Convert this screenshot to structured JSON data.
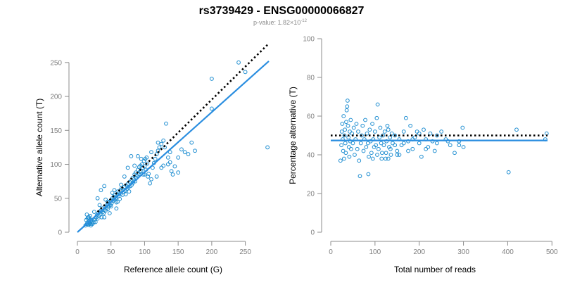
{
  "header": {
    "title": "rs3739429 - ENSG00000066827",
    "pvalue_prefix": "p-value: 1.82×10",
    "pvalue_exponent": "-12"
  },
  "colors": {
    "point": "#1f8ed1",
    "fit": "#2a8ee0",
    "expected": "#000000",
    "axis": "#8c8c8c"
  },
  "chart_data": [
    {
      "type": "scatter",
      "name": "left-panel",
      "xlabel": "Reference allele count (G)",
      "ylabel": "Alternative allele count (T)",
      "xlim": [
        0,
        285
      ],
      "ylim": [
        0,
        255
      ],
      "xticks": [
        0,
        50,
        100,
        150,
        200,
        250
      ],
      "yticks": [
        0,
        50,
        100,
        150,
        200,
        250
      ],
      "fit_line": {
        "style": "solid",
        "x": [
          0,
          285
        ],
        "y": [
          0,
          252
        ]
      },
      "expected_line": {
        "style": "dotted",
        "x": [
          30,
          285
        ],
        "y": [
          30,
          278
        ]
      },
      "points": [
        [
          12,
          10
        ],
        [
          14,
          12
        ],
        [
          15,
          14
        ],
        [
          16,
          11
        ],
        [
          17,
          15
        ],
        [
          18,
          17
        ],
        [
          19,
          13
        ],
        [
          20,
          16
        ],
        [
          21,
          18
        ],
        [
          22,
          15
        ],
        [
          13,
          18
        ],
        [
          15,
          20
        ],
        [
          17,
          22
        ],
        [
          19,
          24
        ],
        [
          14,
          26
        ],
        [
          16,
          22
        ],
        [
          18,
          12
        ],
        [
          20,
          10
        ],
        [
          22,
          12
        ],
        [
          24,
          14
        ],
        [
          25,
          18
        ],
        [
          26,
          20
        ],
        [
          27,
          15
        ],
        [
          28,
          22
        ],
        [
          29,
          25
        ],
        [
          30,
          20
        ],
        [
          31,
          28
        ],
        [
          32,
          24
        ],
        [
          33,
          30
        ],
        [
          34,
          26
        ],
        [
          35,
          32
        ],
        [
          36,
          22
        ],
        [
          37,
          35
        ],
        [
          38,
          30
        ],
        [
          39,
          28
        ],
        [
          40,
          33
        ],
        [
          41,
          38
        ],
        [
          42,
          32
        ],
        [
          43,
          36
        ],
        [
          44,
          40
        ],
        [
          45,
          34
        ],
        [
          46,
          42
        ],
        [
          47,
          38
        ],
        [
          48,
          45
        ],
        [
          49,
          40
        ],
        [
          50,
          47
        ],
        [
          51,
          43
        ],
        [
          52,
          50
        ],
        [
          53,
          46
        ],
        [
          54,
          52
        ],
        [
          55,
          48
        ],
        [
          56,
          55
        ],
        [
          57,
          50
        ],
        [
          58,
          44
        ],
        [
          59,
          56
        ],
        [
          60,
          60
        ],
        [
          61,
          53
        ],
        [
          62,
          58
        ],
        [
          63,
          49
        ],
        [
          64,
          62
        ],
        [
          65,
          57
        ],
        [
          66,
          65
        ],
        [
          67,
          55
        ],
        [
          68,
          63
        ],
        [
          69,
          59
        ],
        [
          70,
          67
        ],
        [
          71,
          61
        ],
        [
          72,
          56
        ],
        [
          73,
          69
        ],
        [
          74,
          64
        ],
        [
          75,
          71
        ],
        [
          76,
          66
        ],
        [
          77,
          60
        ],
        [
          78,
          74
        ],
        [
          79,
          68
        ],
        [
          80,
          76
        ],
        [
          81,
          70
        ],
        [
          82,
          80
        ],
        [
          83,
          73
        ],
        [
          84,
          78
        ],
        [
          85,
          85
        ],
        [
          86,
          75
        ],
        [
          87,
          88
        ],
        [
          88,
          80
        ],
        [
          89,
          83
        ],
        [
          90,
          92
        ],
        [
          91,
          86
        ],
        [
          92,
          96
        ],
        [
          93,
          89
        ],
        [
          94,
          98
        ],
        [
          95,
          90
        ],
        [
          96,
          100
        ],
        [
          97,
          95
        ],
        [
          98,
          85
        ],
        [
          99,
          105
        ],
        [
          100,
          97
        ],
        [
          101,
          108
        ],
        [
          102,
          92
        ],
        [
          103,
          110
        ],
        [
          104,
          101
        ],
        [
          105,
          82
        ],
        [
          106,
          86
        ],
        [
          108,
          72
        ],
        [
          110,
          78
        ],
        [
          112,
          95
        ],
        [
          114,
          102
        ],
        [
          116,
          108
        ],
        [
          118,
          115
        ],
        [
          120,
          120
        ],
        [
          122,
          125
        ],
        [
          125,
          130
        ],
        [
          128,
          135
        ],
        [
          130,
          125
        ],
        [
          132,
          160
        ],
        [
          135,
          110
        ],
        [
          138,
          118
        ],
        [
          140,
          90
        ],
        [
          145,
          97
        ],
        [
          150,
          110
        ],
        [
          155,
          122
        ],
        [
          160,
          118
        ],
        [
          165,
          115
        ],
        [
          170,
          132
        ],
        [
          175,
          120
        ],
        [
          118,
          82
        ],
        [
          125,
          95
        ],
        [
          135,
          100
        ],
        [
          142,
          85
        ],
        [
          150,
          88
        ],
        [
          200,
          182
        ],
        [
          200,
          226
        ],
        [
          240,
          250
        ],
        [
          250,
          236
        ],
        [
          283,
          125
        ],
        [
          30,
          50
        ],
        [
          35,
          62
        ],
        [
          40,
          68
        ],
        [
          45,
          45
        ],
        [
          50,
          38
        ],
        [
          55,
          62
        ],
        [
          60,
          45
        ],
        [
          65,
          70
        ],
        [
          70,
          82
        ],
        [
          75,
          95
        ],
        [
          80,
          112
        ],
        [
          85,
          98
        ],
        [
          90,
          112
        ],
        [
          95,
          108
        ],
        [
          100,
          85
        ],
        [
          110,
          118
        ],
        [
          120,
          132
        ],
        [
          128,
          98
        ],
        [
          138,
          103
        ],
        [
          40,
          22
        ],
        [
          48,
          28
        ],
        [
          58,
          35
        ],
        [
          25,
          30
        ],
        [
          33,
          40
        ],
        [
          42,
          48
        ],
        [
          52,
          58
        ]
      ]
    },
    {
      "type": "scatter",
      "name": "right-panel",
      "xlabel": "Total number of reads",
      "ylabel": "Percentage alternative (T)",
      "xlim": [
        0,
        490
      ],
      "ylim": [
        0,
        100
      ],
      "xticks": [
        0,
        100,
        200,
        300,
        400,
        500
      ],
      "yticks": [
        0,
        20,
        40,
        60,
        80,
        100
      ],
      "fit_line": {
        "style": "solid",
        "x": [
          0,
          490
        ],
        "y": [
          47.4,
          47.4
        ]
      },
      "expected_line": {
        "style": "dotted",
        "x": [
          0,
          490
        ],
        "y": [
          50,
          50
        ]
      },
      "points": [
        [
          22,
          37
        ],
        [
          24,
          45
        ],
        [
          25,
          52
        ],
        [
          26,
          56
        ],
        [
          27,
          48
        ],
        [
          28,
          42
        ],
        [
          29,
          60
        ],
        [
          30,
          38
        ],
        [
          31,
          50
        ],
        [
          32,
          53
        ],
        [
          33,
          46
        ],
        [
          34,
          41
        ],
        [
          35,
          57
        ],
        [
          36,
          63
        ],
        [
          37,
          65
        ],
        [
          38,
          68
        ],
        [
          39,
          55
        ],
        [
          40,
          49
        ],
        [
          41,
          44
        ],
        [
          42,
          39
        ],
        [
          43,
          52
        ],
        [
          44,
          47
        ],
        [
          45,
          58
        ],
        [
          46,
          43
        ],
        [
          48,
          51
        ],
        [
          50,
          46
        ],
        [
          52,
          54
        ],
        [
          54,
          40
        ],
        [
          56,
          48
        ],
        [
          58,
          56
        ],
        [
          60,
          43
        ],
        [
          62,
          52
        ],
        [
          64,
          37
        ],
        [
          66,
          29
        ],
        [
          68,
          46
        ],
        [
          70,
          50
        ],
        [
          72,
          55
        ],
        [
          74,
          42
        ],
        [
          76,
          48
        ],
        [
          78,
          58
        ],
        [
          80,
          44
        ],
        [
          82,
          51
        ],
        [
          84,
          46
        ],
        [
          86,
          39
        ],
        [
          88,
          53
        ],
        [
          90,
          47
        ],
        [
          92,
          41
        ],
        [
          94,
          56
        ],
        [
          96,
          48
        ],
        [
          98,
          44
        ],
        [
          100,
          52
        ],
        [
          102,
          45
        ],
        [
          104,
          59
        ],
        [
          106,
          66
        ],
        [
          108,
          43
        ],
        [
          110,
          49
        ],
        [
          112,
          54
        ],
        [
          114,
          46
        ],
        [
          116,
          41
        ],
        [
          118,
          50
        ],
        [
          120,
          45
        ],
        [
          122,
          52
        ],
        [
          124,
          38
        ],
        [
          126,
          47
        ],
        [
          128,
          55
        ],
        [
          130,
          53
        ],
        [
          132,
          44
        ],
        [
          134,
          49
        ],
        [
          136,
          40
        ],
        [
          138,
          51
        ],
        [
          140,
          46
        ],
        [
          145,
          50
        ],
        [
          150,
          42
        ],
        [
          155,
          48
        ],
        [
          160,
          45
        ],
        [
          165,
          52
        ],
        [
          170,
          59
        ],
        [
          175,
          47
        ],
        [
          180,
          55
        ],
        [
          185,
          43
        ],
        [
          190,
          49
        ],
        [
          195,
          52
        ],
        [
          200,
          46
        ],
        [
          205,
          39
        ],
        [
          210,
          53
        ],
        [
          215,
          48
        ],
        [
          220,
          44
        ],
        [
          225,
          51
        ],
        [
          230,
          47
        ],
        [
          235,
          42
        ],
        [
          240,
          50
        ],
        [
          250,
          52
        ],
        [
          260,
          48
        ],
        [
          270,
          45
        ],
        [
          280,
          41
        ],
        [
          290,
          47
        ],
        [
          298,
          54
        ],
        [
          300,
          44
        ],
        [
          402,
          31
        ],
        [
          420,
          53
        ],
        [
          485,
          48
        ],
        [
          488,
          51
        ],
        [
          85,
          30
        ],
        [
          95,
          38
        ],
        [
          105,
          40
        ],
        [
          115,
          38
        ],
        [
          125,
          41
        ],
        [
          135,
          43
        ],
        [
          145,
          45
        ],
        [
          155,
          40
        ],
        [
          165,
          46
        ],
        [
          175,
          42
        ],
        [
          185,
          48
        ],
        [
          200,
          51
        ],
        [
          215,
          43
        ],
        [
          240,
          46
        ],
        [
          265,
          47
        ],
        [
          290,
          45
        ],
        [
          150,
          40
        ],
        [
          130,
          38
        ]
      ]
    }
  ]
}
